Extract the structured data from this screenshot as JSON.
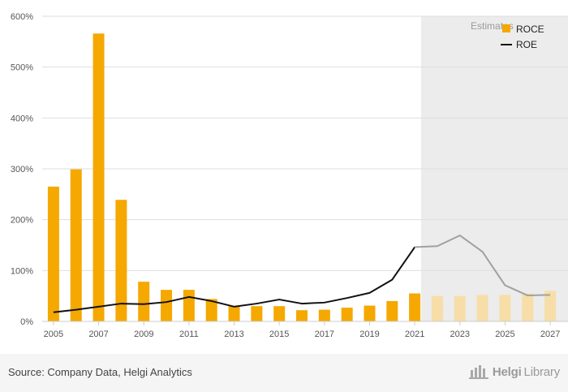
{
  "chart_data": {
    "type": "bar",
    "categories": [
      "2005",
      "2006",
      "2007",
      "2008",
      "2009",
      "2010",
      "2011",
      "2012",
      "2013",
      "2014",
      "2015",
      "2016",
      "2017",
      "2018",
      "2019",
      "2020",
      "2021",
      "2022",
      "2023",
      "2024",
      "2025",
      "2026",
      "2027"
    ],
    "x_tick_labels": [
      "2005",
      "2007",
      "2009",
      "2011",
      "2013",
      "2015",
      "2017",
      "2019",
      "2021",
      "2023",
      "2025",
      "2027"
    ],
    "y_tick_labels": [
      "0%",
      "100%",
      "200%",
      "300%",
      "400%",
      "500%",
      "600%"
    ],
    "ylim": [
      0,
      600
    ],
    "estimate_start": "2022",
    "estimate_label": "Estimates",
    "series": [
      {
        "name": "ROCE",
        "type": "bar",
        "color": "#f5a800",
        "estimate_color": "#f7dea8",
        "values": [
          265,
          299,
          566,
          239,
          78,
          62,
          62,
          44,
          30,
          30,
          30,
          22,
          23,
          27,
          31,
          40,
          55,
          50,
          50,
          52,
          52,
          55,
          60
        ]
      },
      {
        "name": "ROE",
        "type": "line",
        "color": "#111111",
        "estimate_color": "#a0a0a0",
        "values": [
          18,
          23,
          29,
          35,
          34,
          38,
          48,
          40,
          29,
          35,
          43,
          35,
          37,
          46,
          56,
          82,
          146,
          148,
          169,
          137,
          71,
          51,
          52
        ]
      }
    ],
    "grid": true,
    "legend_position": "top-right"
  },
  "footer": {
    "source": "Source: Company Data, Helgi Analytics",
    "brand_bold": "Helgi",
    "brand_regular": "Library",
    "brand_icon": "library-building-icon"
  }
}
